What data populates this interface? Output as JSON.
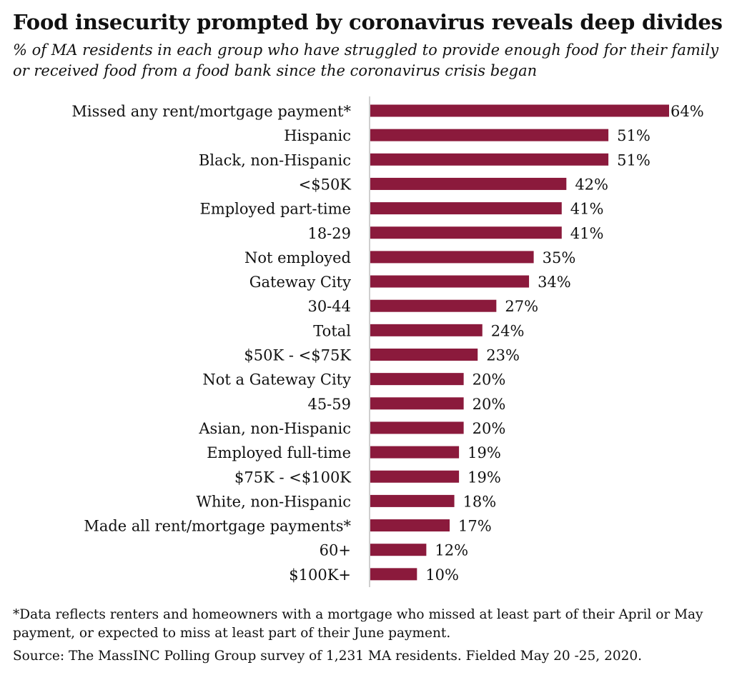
{
  "title": "Food insecurity prompted by coronavirus reveals deep divides",
  "subtitle": "% of MA residents in each group who have struggled to provide enough food for their family or received food from a food bank since the coronavirus crisis began",
  "footnote": "*Data reflects renters and homeowners with a mortgage who missed at least part of their April or May payment, or expected to miss at least part of their June payment.",
  "source": "Source: The MassINC Polling Group survey of 1,231 MA residents. Fielded May 20 -25, 2020.",
  "colors": {
    "bar": "#8b1a3c",
    "axis": "#bfbfbf",
    "text": "#111111"
  },
  "chart_data": {
    "type": "bar",
    "orientation": "horizontal",
    "categories": [
      "Missed any rent/mortgage payment*",
      "Hispanic",
      "Black, non-Hispanic",
      "<$50K",
      "Employed part-time",
      "18-29",
      "Not employed",
      "Gateway City",
      "30-44",
      "Total",
      "$50K - <$75K",
      "Not a Gateway City",
      "45-59",
      "Asian, non-Hispanic",
      "Employed full-time",
      "$75K - <$100K",
      "White, non-Hispanic",
      "Made all rent/mortgage payments*",
      "60+",
      "$100K+"
    ],
    "values": [
      64,
      51,
      51,
      42,
      41,
      41,
      35,
      34,
      27,
      24,
      23,
      20,
      20,
      20,
      19,
      19,
      18,
      17,
      12,
      10
    ],
    "value_labels": [
      "64%",
      "51%",
      "51%",
      "42%",
      "41%",
      "41%",
      "35%",
      "34%",
      "27%",
      "24%",
      "23%",
      "20%",
      "20%",
      "20%",
      "19%",
      "19%",
      "18%",
      "17%",
      "12%",
      "10%"
    ],
    "xlim": [
      0,
      64
    ],
    "xlabel": "",
    "ylabel": "",
    "grid": false,
    "legend": "none"
  }
}
